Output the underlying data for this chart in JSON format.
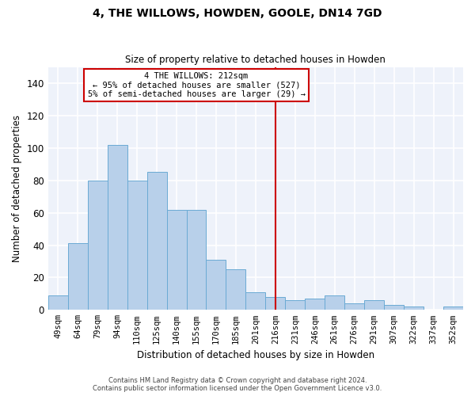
{
  "title": "4, THE WILLOWS, HOWDEN, GOOLE, DN14 7GD",
  "subtitle": "Size of property relative to detached houses in Howden",
  "xlabel": "Distribution of detached houses by size in Howden",
  "ylabel": "Number of detached properties",
  "bar_color": "#b8d0ea",
  "bar_edge_color": "#6aaad4",
  "background_color": "#eef2fa",
  "grid_color": "#ffffff",
  "categories": [
    "49sqm",
    "64sqm",
    "79sqm",
    "94sqm",
    "110sqm",
    "125sqm",
    "140sqm",
    "155sqm",
    "170sqm",
    "185sqm",
    "201sqm",
    "216sqm",
    "231sqm",
    "246sqm",
    "261sqm",
    "276sqm",
    "291sqm",
    "307sqm",
    "322sqm",
    "337sqm",
    "352sqm"
  ],
  "values": [
    9,
    41,
    80,
    102,
    80,
    85,
    62,
    62,
    31,
    25,
    11,
    8,
    6,
    7,
    9,
    4,
    6,
    3,
    2,
    0,
    2
  ],
  "vline_index": 11,
  "vline_color": "#cc0000",
  "annotation_text": "4 THE WILLOWS: 212sqm\n← 95% of detached houses are smaller (527)\n5% of semi-detached houses are larger (29) →",
  "ylim": [
    0,
    150
  ],
  "yticks": [
    0,
    20,
    40,
    60,
    80,
    100,
    120,
    140
  ],
  "footer_line1": "Contains HM Land Registry data © Crown copyright and database right 2024.",
  "footer_line2": "Contains public sector information licensed under the Open Government Licence v3.0."
}
